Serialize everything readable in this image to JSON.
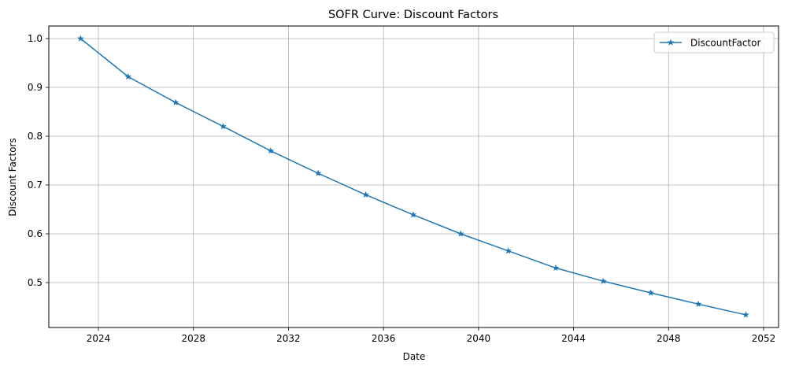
{
  "chart_data": {
    "type": "line",
    "title": "SOFR Curve: Discount Factors",
    "xlabel": "Date",
    "ylabel": "Discount Factors",
    "x_ticks": [
      "2024",
      "2028",
      "2032",
      "2036",
      "2040",
      "2044",
      "2048",
      "2052"
    ],
    "y_ticks": [
      "0.5",
      "0.6",
      "0.7",
      "0.8",
      "0.9",
      "1.0"
    ],
    "grid": true,
    "legend_position": "top-right",
    "series": [
      {
        "name": "DiscountFactor",
        "color": "#1f77b4",
        "marker": "star",
        "x": [
          "2023-04",
          "2025-04",
          "2027-04",
          "2029-04",
          "2031-04",
          "2033-04",
          "2035-04",
          "2037-04",
          "2039-04",
          "2041-04",
          "2043-04",
          "2045-04",
          "2047-04",
          "2049-04",
          "2051-04"
        ],
        "values": [
          1.0,
          0.922,
          0.869,
          0.82,
          0.77,
          0.724,
          0.68,
          0.639,
          0.6,
          0.565,
          0.53,
          0.503,
          0.479,
          0.456,
          0.434
        ]
      }
    ]
  }
}
